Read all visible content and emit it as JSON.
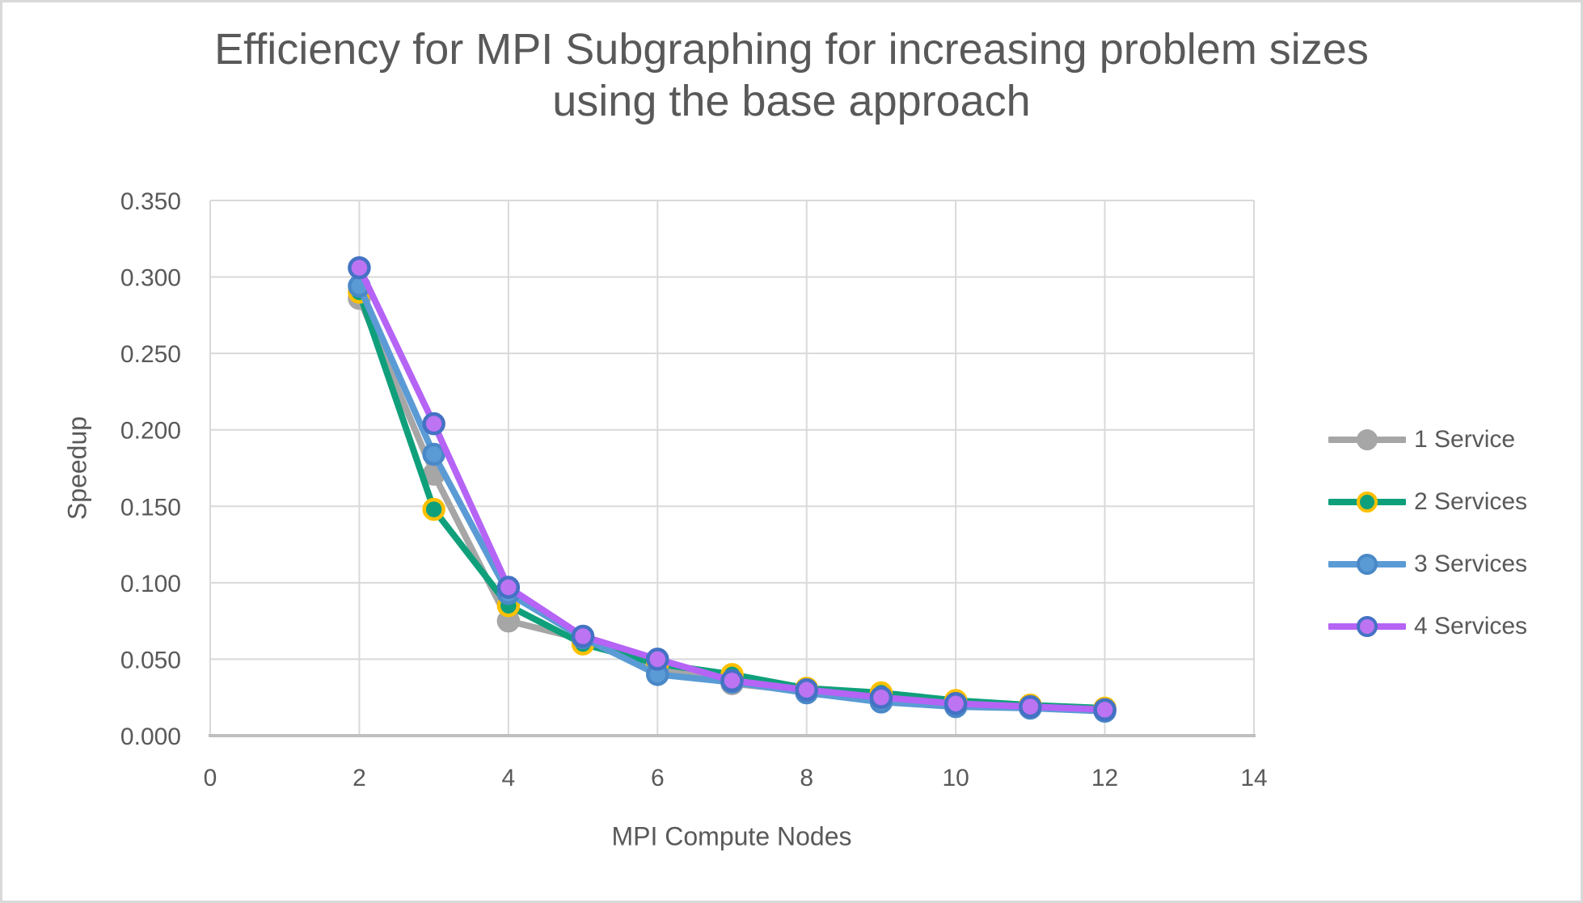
{
  "window": {
    "background": "#ffffff",
    "border_color": "#d9d9d9"
  },
  "chart_data": {
    "type": "line",
    "title": "Efficiency for MPI Subgraphing for increasing problem sizes using the base approach",
    "title_lines": [
      "Efficiency for MPI Subgraphing for increasing problem sizes",
      "using the base approach"
    ],
    "xlabel": "MPI Compute Nodes",
    "ylabel": "Speedup",
    "xlim": [
      0,
      14
    ],
    "ylim": [
      0,
      0.35
    ],
    "x_ticks": [
      0,
      2,
      4,
      6,
      8,
      10,
      12,
      14
    ],
    "y_ticks": [
      0,
      0.05,
      0.1,
      0.15,
      0.2,
      0.25,
      0.3,
      0.35
    ],
    "y_tick_decimals": 3,
    "grid": true,
    "legend_position": "right",
    "x": [
      2,
      3,
      4,
      5,
      6,
      7,
      8,
      9,
      10,
      11,
      12
    ],
    "series": [
      {
        "name": "1 Service",
        "color": "#A6A6A6",
        "marker_fill": "#A6A6A6",
        "marker_border": "#A6A6A6",
        "values": [
          0.286,
          0.171,
          0.075,
          0.063,
          0.045,
          0.034,
          0.029,
          0.026,
          0.021,
          0.019,
          0.017
        ]
      },
      {
        "name": "2 Services",
        "color": "#0FA07B",
        "marker_fill": "#0FA07B",
        "marker_border": "#FFC000",
        "values": [
          0.29,
          0.148,
          0.085,
          0.06,
          0.047,
          0.04,
          0.031,
          0.028,
          0.023,
          0.02,
          0.018
        ]
      },
      {
        "name": "3 Services",
        "color": "#5B9BD5",
        "marker_fill": "#5B9BD5",
        "marker_border": "#4A88C7",
        "values": [
          0.294,
          0.184,
          0.093,
          0.064,
          0.04,
          0.035,
          0.028,
          0.022,
          0.019,
          0.018,
          0.016
        ]
      },
      {
        "name": "4 Services",
        "color": "#B564F5",
        "marker_fill": "#BC74F2",
        "marker_border": "#4472C4",
        "values": [
          0.306,
          0.204,
          0.097,
          0.065,
          0.05,
          0.036,
          0.03,
          0.025,
          0.021,
          0.019,
          0.017
        ]
      }
    ],
    "colors": {
      "grid": "#D9D9D9",
      "axis_line": "#BFBFBF",
      "text": "#595959"
    }
  }
}
